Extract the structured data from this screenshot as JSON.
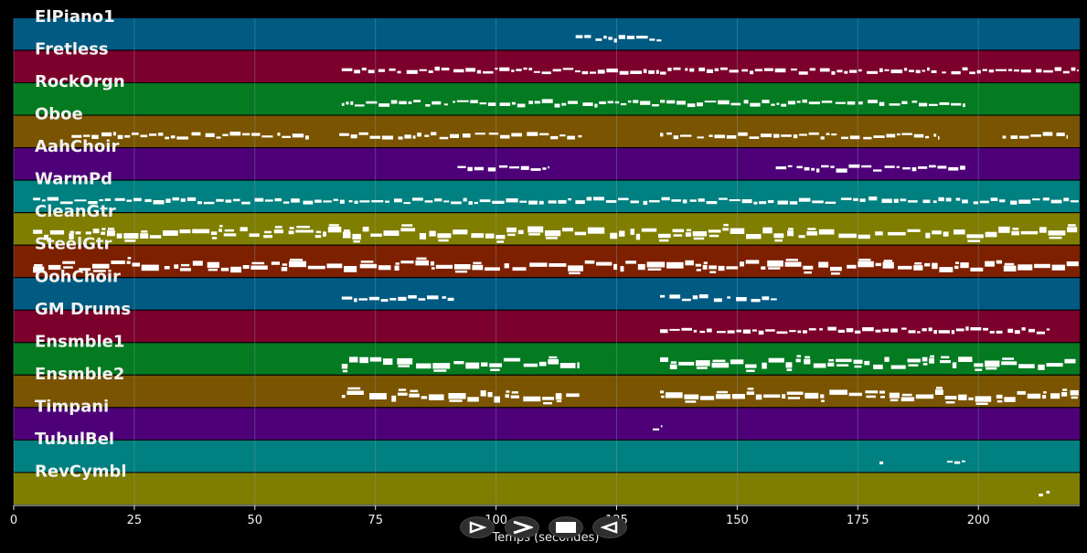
{
  "colors": {
    "background": "#000000",
    "track_palette": [
      "#005a82",
      "#7c002c",
      "#047a21",
      "#7a5400",
      "#4e0078",
      "#008080",
      "#7f7e00",
      "#7d2000"
    ],
    "note": "#ffffff",
    "grid": "#8aa5b5"
  },
  "chart_data": {
    "type": "piano-roll",
    "xlabel": "Temps (secondes)",
    "xlim": [
      0,
      221
    ],
    "xticks": [
      0,
      25,
      50,
      75,
      100,
      125,
      150,
      175,
      200
    ],
    "grid": true,
    "tracks": [
      {
        "name": "ElPiano1",
        "color": "#005a82",
        "segments": [
          [
            116.5,
            134.5
          ]
        ]
      },
      {
        "name": "Fretless",
        "color": "#7c002c",
        "segments": [
          [
            68,
            134
          ],
          [
            134,
            221
          ]
        ]
      },
      {
        "name": "RockOrgn",
        "color": "#047a21",
        "segments": [
          [
            68,
            134
          ],
          [
            134,
            197.5
          ]
        ]
      },
      {
        "name": "Oboe",
        "color": "#7a5400",
        "segments": [
          [
            12,
            62
          ],
          [
            67.5,
            118
          ],
          [
            134,
            192
          ],
          [
            205,
            218.5
          ]
        ]
      },
      {
        "name": "AahChoir",
        "color": "#4e0078",
        "segments": [
          [
            92,
            111
          ],
          [
            158,
            197.5
          ]
        ]
      },
      {
        "name": "WarmPd",
        "color": "#008080",
        "segments": [
          [
            4,
            221
          ]
        ]
      },
      {
        "name": "CleanGtr",
        "color": "#7f7e00",
        "segments": [
          [
            4,
            221
          ]
        ]
      },
      {
        "name": "SteelGtr",
        "color": "#7d2000",
        "segments": [
          [
            4,
            221
          ]
        ]
      },
      {
        "name": "OohChoir",
        "color": "#005a82",
        "segments": [
          [
            68,
            91.5
          ],
          [
            134,
            158.5
          ]
        ]
      },
      {
        "name": "GM Drums",
        "color": "#7c002c",
        "segments": [
          [
            134,
            215
          ]
        ]
      },
      {
        "name": "Ensmble1",
        "color": "#047a21",
        "segments": [
          [
            68,
            117.5
          ],
          [
            134,
            221
          ]
        ]
      },
      {
        "name": "Ensmble2",
        "color": "#7a5400",
        "segments": [
          [
            68,
            117.5
          ],
          [
            134,
            221
          ]
        ]
      },
      {
        "name": "Timpani",
        "color": "#4e0078",
        "segments": [
          [
            132.5,
            134.5
          ]
        ]
      },
      {
        "name": "TubulBel",
        "color": "#008080",
        "segments": [
          [
            179.5,
            180.5
          ],
          [
            193.5,
            197.5
          ]
        ]
      },
      {
        "name": "RevCymbl",
        "color": "#7f7e00",
        "segments": [
          [
            212.5,
            215
          ]
        ]
      }
    ]
  },
  "controls": [
    {
      "name": "play-button",
      "icon": "play-icon"
    },
    {
      "name": "forward-button",
      "icon": "chevron-right-icon"
    },
    {
      "name": "stop-button",
      "icon": "stop-icon"
    },
    {
      "name": "rewind-button",
      "icon": "reverse-icon"
    }
  ]
}
